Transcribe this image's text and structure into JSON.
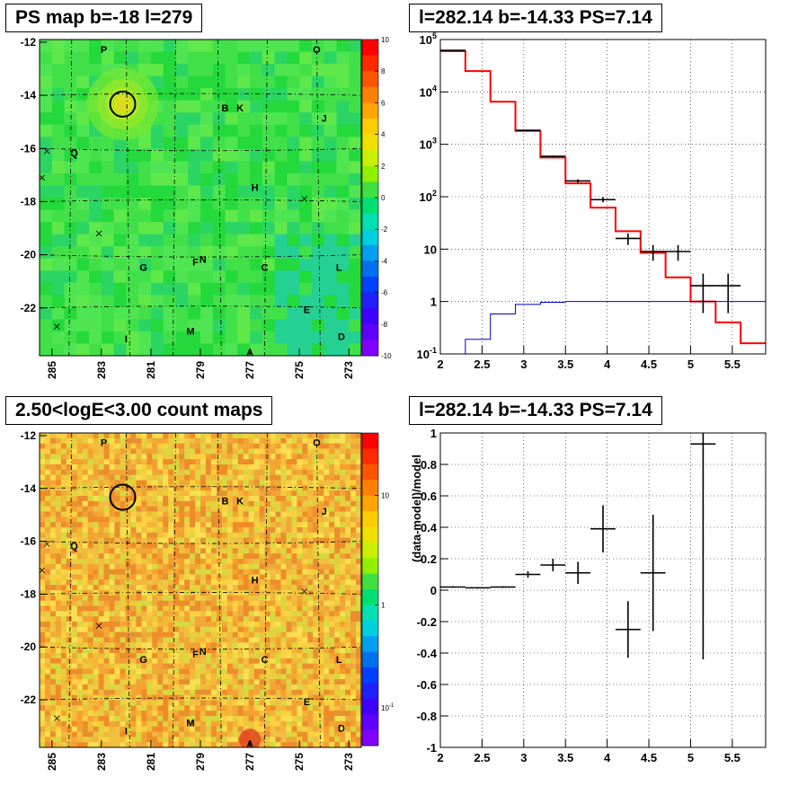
{
  "panels": {
    "ps_map_title": "PS map b=-18 l=279",
    "spectrum_title": "l=282.14 b=-14.33 PS=7.14",
    "count_map_title": "2.50<logE<3.00 count maps",
    "residual_title": "l=282.14 b=-14.33 PS=7.14"
  },
  "chart_data": [
    {
      "id": "ps_map",
      "type": "heatmap",
      "title": "PS map b=-18 l=279",
      "xlim": [
        285.5,
        272.5
      ],
      "ylim": [
        -23.8,
        -11.9
      ],
      "x_ticks": [
        "285",
        "283",
        "281",
        "279",
        "277",
        "275",
        "273"
      ],
      "y_ticks": [
        "-12",
        "-14",
        "-16",
        "-18",
        "-20",
        "-22"
      ],
      "colorbar": {
        "range": [
          -10,
          10
        ],
        "ticks": [
          "10",
          "8",
          "6",
          "4",
          "2",
          "0",
          "-2",
          "-4",
          "-6",
          "-8",
          "-10"
        ]
      },
      "source_labels": [
        {
          "t": "P",
          "l": 282.9,
          "b": -12.4
        },
        {
          "t": "O",
          "l": 274.3,
          "b": -12.4
        },
        {
          "t": "B",
          "l": 278.0,
          "b": -14.6
        },
        {
          "t": "K",
          "l": 277.4,
          "b": -14.6
        },
        {
          "t": "J",
          "l": 274.0,
          "b": -15.0
        },
        {
          "t": "Q",
          "l": 284.1,
          "b": -16.3
        },
        {
          "t": "H",
          "l": 276.8,
          "b": -17.6
        },
        {
          "t": "G",
          "l": 281.3,
          "b": -20.6
        },
        {
          "t": "F",
          "l": 279.2,
          "b": -20.4
        },
        {
          "t": "N",
          "l": 278.9,
          "b": -20.3
        },
        {
          "t": "C",
          "l": 276.4,
          "b": -20.6
        },
        {
          "t": "L",
          "l": 273.4,
          "b": -20.6
        },
        {
          "t": "E",
          "l": 274.7,
          "b": -22.2
        },
        {
          "t": "M",
          "l": 279.4,
          "b": -23.0
        },
        {
          "t": "I",
          "l": 282.0,
          "b": -23.3
        },
        {
          "t": "D",
          "l": 273.3,
          "b": -23.2
        },
        {
          "t": "A",
          "l": 277.0,
          "b": -23.8
        }
      ],
      "circle": {
        "l": 282.14,
        "b": -14.33
      }
    },
    {
      "id": "spectrum",
      "type": "line",
      "title": "l=282.14 b=-14.33 PS=7.14",
      "xlim": [
        2,
        5.9
      ],
      "ylim": [
        0.1,
        100000
      ],
      "yscale": "log",
      "x_ticks": [
        "2",
        "2.5",
        "3",
        "3.5",
        "4",
        "4.5",
        "5",
        "5.5"
      ],
      "y_ticks": [
        "10^5",
        "10^4",
        "10^3",
        "10^2",
        "10",
        "1",
        "10^-1"
      ],
      "grid": true,
      "series": [
        {
          "color": "#ff0000",
          "edges": [
            2.0,
            2.3,
            2.6,
            2.9,
            3.2,
            3.5,
            3.8,
            4.1,
            4.4,
            4.7,
            5.0,
            5.3,
            5.6,
            5.9
          ],
          "values": [
            60000,
            25000,
            6500,
            1800,
            560,
            180,
            62,
            22,
            8.5,
            2.9,
            1.0,
            0.4,
            0.16
          ]
        },
        {
          "color": "#0000cc",
          "edges": [
            2.0,
            2.3,
            2.6,
            2.9,
            3.2,
            3.5,
            3.8,
            4.1,
            4.4,
            4.7,
            5.0,
            5.3,
            5.6,
            5.9
          ],
          "values": [
            0.05,
            0.19,
            0.58,
            0.88,
            0.97,
            1.0,
            1.0,
            1.0,
            1.0,
            1.0,
            1.0,
            1.0,
            1.0
          ]
        },
        {
          "color": "#000000",
          "points": [
            {
              "x": 2.15,
              "xerr": 0.15,
              "y": 62000,
              "ylo": 61000,
              "yhi": 63000
            },
            {
              "x": 3.05,
              "xerr": 0.15,
              "y": 1850,
              "ylo": 1800,
              "yhi": 1900
            },
            {
              "x": 3.35,
              "xerr": 0.15,
              "y": 590,
              "ylo": 570,
              "yhi": 610
            },
            {
              "x": 3.65,
              "xerr": 0.15,
              "y": 200,
              "ylo": 185,
              "yhi": 215
            },
            {
              "x": 3.95,
              "xerr": 0.15,
              "y": 88,
              "ylo": 78,
              "yhi": 98
            },
            {
              "x": 4.25,
              "xerr": 0.15,
              "y": 16,
              "ylo": 12,
              "yhi": 20
            },
            {
              "x": 4.55,
              "xerr": 0.15,
              "y": 9,
              "ylo": 6,
              "yhi": 12
            },
            {
              "x": 4.85,
              "xerr": 0.15,
              "y": 9,
              "ylo": 6,
              "yhi": 12
            },
            {
              "x": 5.15,
              "xerr": 0.15,
              "y": 2,
              "ylo": 0.6,
              "yhi": 3.4
            },
            {
              "x": 5.45,
              "xerr": 0.15,
              "y": 2,
              "ylo": 0.6,
              "yhi": 3.4
            }
          ]
        }
      ]
    },
    {
      "id": "count_map",
      "type": "heatmap",
      "title": "2.50<logE<3.00 count maps",
      "xlim": [
        285.5,
        272.5
      ],
      "ylim": [
        -23.8,
        -11.9
      ],
      "x_ticks": [
        "285",
        "283",
        "281",
        "279",
        "277",
        "275",
        "273"
      ],
      "y_ticks": [
        "-12",
        "-14",
        "-16",
        "-18",
        "-20",
        "-22"
      ],
      "colorbar": {
        "scale": "log",
        "ticks": [
          "10",
          "1",
          "10^-1"
        ]
      },
      "source_labels": [
        {
          "t": "P",
          "l": 282.9,
          "b": -12.4
        },
        {
          "t": "O",
          "l": 274.3,
          "b": -12.4
        },
        {
          "t": "B",
          "l": 278.0,
          "b": -14.6
        },
        {
          "t": "K",
          "l": 277.4,
          "b": -14.6
        },
        {
          "t": "J",
          "l": 274.0,
          "b": -15.0
        },
        {
          "t": "Q",
          "l": 284.1,
          "b": -16.3
        },
        {
          "t": "H",
          "l": 276.8,
          "b": -17.6
        },
        {
          "t": "G",
          "l": 281.3,
          "b": -20.6
        },
        {
          "t": "F",
          "l": 279.2,
          "b": -20.4
        },
        {
          "t": "N",
          "l": 278.9,
          "b": -20.3
        },
        {
          "t": "C",
          "l": 276.4,
          "b": -20.6
        },
        {
          "t": "L",
          "l": 273.4,
          "b": -20.6
        },
        {
          "t": "E",
          "l": 274.7,
          "b": -22.2
        },
        {
          "t": "M",
          "l": 279.4,
          "b": -23.0
        },
        {
          "t": "I",
          "l": 282.0,
          "b": -23.3
        },
        {
          "t": "D",
          "l": 273.3,
          "b": -23.2
        },
        {
          "t": "A",
          "l": 277.0,
          "b": -23.8
        }
      ],
      "circle": {
        "l": 282.14,
        "b": -14.33
      }
    },
    {
      "id": "residual",
      "type": "scatter",
      "title": "l=282.14 b=-14.33 PS=7.14",
      "ylabel": "(data-model)/model",
      "xlim": [
        2,
        5.9
      ],
      "ylim": [
        -1,
        1
      ],
      "x_ticks": [
        "2",
        "2.5",
        "3",
        "3.5",
        "4",
        "4.5",
        "5",
        "5.5"
      ],
      "y_ticks": [
        "1",
        "0.8",
        "0.6",
        "0.4",
        "0.2",
        "0",
        "-0.2",
        "-0.4",
        "-0.6",
        "-0.8",
        "-1"
      ],
      "grid": true,
      "points": [
        {
          "x": 2.15,
          "xerr": 0.15,
          "y": 0.02,
          "yerr": 0.005
        },
        {
          "x": 2.45,
          "xerr": 0.15,
          "y": 0.015,
          "yerr": 0.005
        },
        {
          "x": 2.75,
          "xerr": 0.15,
          "y": 0.02,
          "yerr": 0.005
        },
        {
          "x": 3.05,
          "xerr": 0.15,
          "y": 0.1,
          "yerr": 0.02
        },
        {
          "x": 3.35,
          "xerr": 0.15,
          "y": 0.16,
          "yerr": 0.04
        },
        {
          "x": 3.65,
          "xerr": 0.15,
          "y": 0.11,
          "yerr": 0.07
        },
        {
          "x": 3.95,
          "xerr": 0.15,
          "y": 0.39,
          "yerr": 0.15
        },
        {
          "x": 4.25,
          "xerr": 0.15,
          "y": -0.25,
          "yerr": 0.18
        },
        {
          "x": 4.55,
          "xerr": 0.15,
          "y": 0.11,
          "yerr": 0.37
        },
        {
          "x": 5.15,
          "xerr": 0.15,
          "y": 0.93,
          "yerr": 1.37
        }
      ]
    }
  ]
}
